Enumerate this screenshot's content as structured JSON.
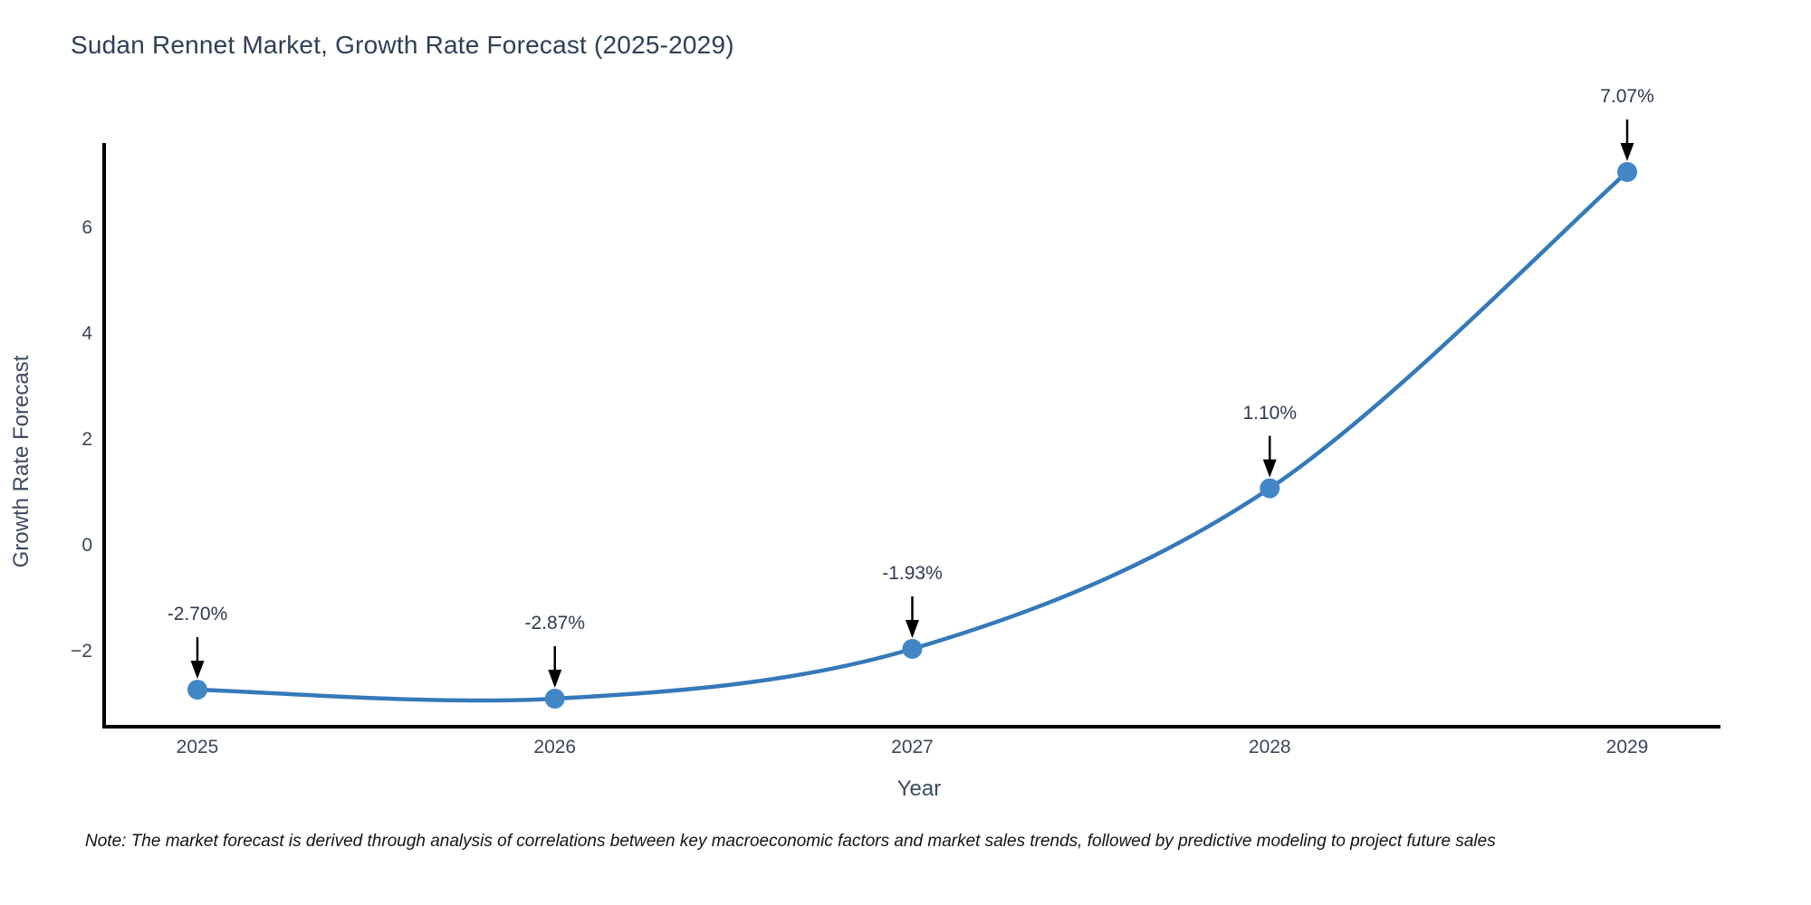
{
  "page": {
    "background": "#ffffff"
  },
  "chart_data": {
    "type": "line",
    "title": "Sudan Rennet Market, Growth Rate Forecast (2025-2029)",
    "xlabel": "Year",
    "ylabel": "Growth Rate Forecast",
    "x": [
      2025,
      2026,
      2027,
      2028,
      2029
    ],
    "series": [
      {
        "name": "Growth Rate Forecast",
        "values": [
          -2.7,
          -2.87,
          -1.93,
          1.1,
          7.07
        ]
      }
    ],
    "point_labels": [
      "-2.70%",
      "-2.87%",
      "-1.93%",
      "1.10%",
      "7.07%"
    ],
    "yticks": [
      -2,
      0,
      2,
      4,
      6
    ],
    "ylim": [
      -3.4,
      7.6
    ],
    "xlim": [
      2024.74,
      2029.27
    ],
    "grid": false,
    "legend": "none",
    "marker_size": 11,
    "colors": {
      "line": "#3579b8",
      "marker": "#4287c5",
      "axis": "#000000",
      "text": "#2e3f56",
      "annotation_arrow": "#000000"
    }
  },
  "note": "Note: The market forecast is derived through analysis of correlations between key macroeconomic factors and market sales trends, followed by predictive modeling to project future sales"
}
